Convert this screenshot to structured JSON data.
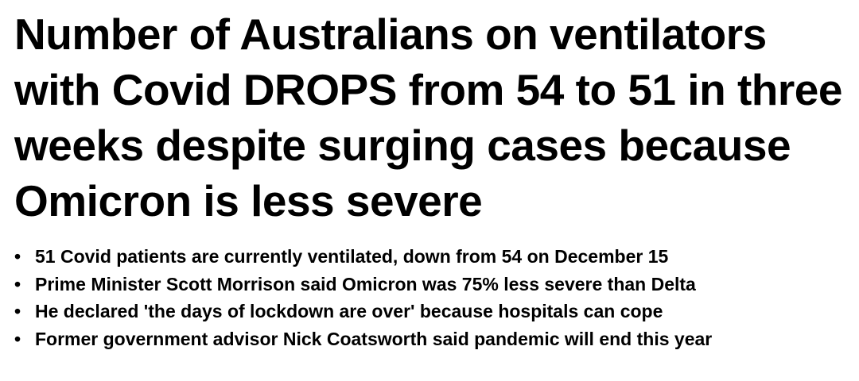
{
  "headline": "Number of Australians on ventilators with Covid DROPS from 54 to 51 in three weeks despite surging cases because Omicron is less severe",
  "bullets": [
    "51 Covid patients are currently ventilated, down from 54 on December 15",
    "Prime Minister Scott Morrison said Omicron was 75% less severe than Delta",
    "He declared 'the days of lockdown are over' because hospitals can cope",
    "Former government advisor Nick Coatsworth said pandemic will end this year"
  ]
}
